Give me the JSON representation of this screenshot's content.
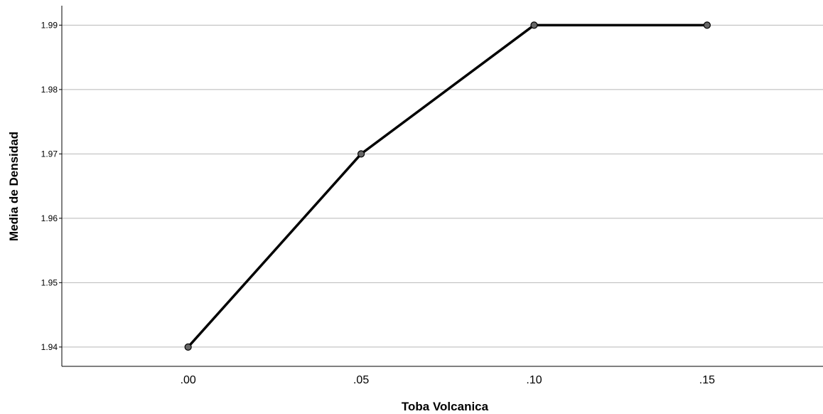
{
  "chart_data": {
    "type": "line",
    "title": "",
    "xlabel": "Toba Volcanica",
    "ylabel": "Media de Densidad",
    "categories": [
      ".00",
      ".05",
      ".10",
      ".15"
    ],
    "x": [
      0.0,
      0.05,
      0.1,
      0.15
    ],
    "series": [
      {
        "values": [
          1.94,
          1.97,
          1.99,
          1.99
        ]
      }
    ],
    "y_ticks": [
      "1.94",
      "1.95",
      "1.96",
      "1.97",
      "1.98",
      "1.99"
    ],
    "y_tick_values": [
      1.94,
      1.95,
      1.96,
      1.97,
      1.98,
      1.99
    ],
    "ylim": [
      1.937,
      1.9928
    ],
    "xlim": [
      -0.0365,
      0.1835
    ],
    "grid": "horizontal",
    "legend": "none",
    "colors": {
      "line": "#000000",
      "marker_fill": "#666666",
      "marker_stroke": "#000000",
      "grid": "#b8b8b8",
      "axis": "#000000",
      "background": "#ffffff"
    }
  }
}
